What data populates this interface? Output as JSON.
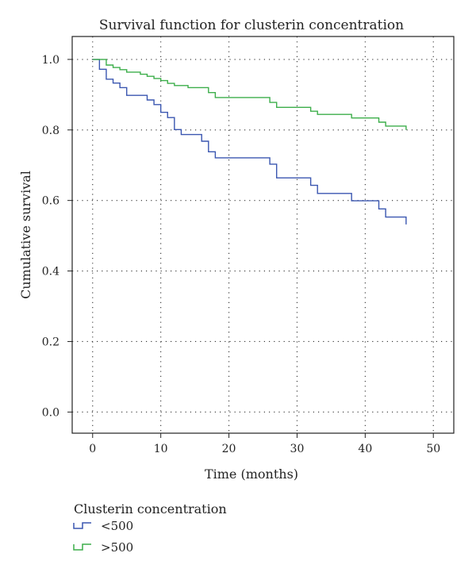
{
  "chart_data": {
    "type": "line",
    "step": true,
    "title": "Survival function for clusterin concentration",
    "xlabel": "Time (months)",
    "ylabel": "Cumulative survival",
    "xlim": [
      -3,
      53
    ],
    "ylim": [
      -0.06,
      1.065
    ],
    "x_ticks": [
      0,
      10,
      20,
      30,
      40,
      50
    ],
    "y_ticks": [
      0.0,
      0.2,
      0.4,
      0.6,
      0.8,
      1.0
    ],
    "x_tick_labels": [
      "0",
      "10",
      "20",
      "30",
      "40",
      "50"
    ],
    "y_tick_labels": [
      "0.0",
      "0.2",
      "0.4",
      "0.6",
      "0.8",
      "1.0"
    ],
    "grid": "dotted",
    "legend": {
      "title": "Clusterin concentration",
      "position": "below-left"
    },
    "series": [
      {
        "name": "<500",
        "color": "#3a56b0",
        "x": [
          0,
          1,
          2,
          3,
          4,
          5,
          6,
          8,
          9,
          10,
          11,
          12,
          13,
          16,
          17,
          18,
          26,
          27,
          32,
          33,
          38,
          42,
          43,
          46,
          46
        ],
        "y": [
          1.0,
          0.972,
          0.944,
          0.933,
          0.92,
          0.898,
          0.898,
          0.885,
          0.872,
          0.85,
          0.835,
          0.801,
          0.787,
          0.768,
          0.738,
          0.721,
          0.703,
          0.664,
          0.643,
          0.62,
          0.599,
          0.576,
          0.553,
          0.553,
          0.532
        ]
      },
      {
        "name": ">500",
        "color": "#3cae4a",
        "x": [
          0,
          2,
          3,
          4,
          5,
          7,
          8,
          9,
          10,
          11,
          12,
          14,
          17,
          18,
          26,
          27,
          32,
          33,
          38,
          42,
          43,
          46,
          46
        ],
        "y": [
          1.0,
          0.984,
          0.977,
          0.971,
          0.964,
          0.958,
          0.952,
          0.946,
          0.94,
          0.932,
          0.926,
          0.92,
          0.906,
          0.892,
          0.878,
          0.864,
          0.853,
          0.844,
          0.834,
          0.822,
          0.811,
          0.811,
          0.8
        ]
      }
    ]
  }
}
